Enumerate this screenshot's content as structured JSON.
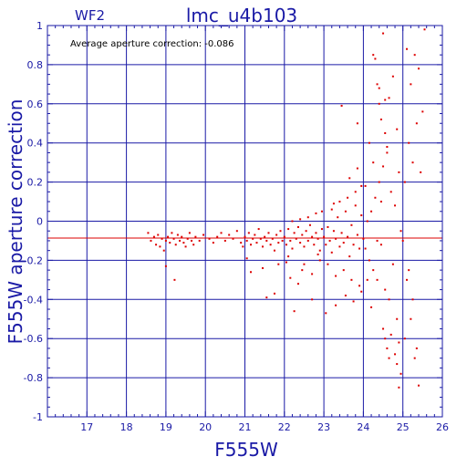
{
  "chart_data": {
    "type": "scatter",
    "title": "lmc_u4b103",
    "chip_label": "WF2",
    "annotation": "Average aperture correction: -0.086",
    "xlabel": "F555W",
    "ylabel": "F555W aperture correction",
    "xlim": [
      16,
      26
    ],
    "ylim": [
      -1,
      1
    ],
    "x_ticks": [
      17,
      18,
      19,
      20,
      21,
      22,
      23,
      24,
      25,
      26
    ],
    "y_ticks": [
      -1,
      -0.8,
      -0.6,
      -0.4,
      -0.2,
      0,
      0.2,
      0.4,
      0.6,
      0.8,
      1
    ],
    "grid": true,
    "average_line": -0.086,
    "colors": {
      "axes": "#1a1aa6",
      "points": "#dd0000",
      "average_line": "#dd0000",
      "annotation": "#000000"
    },
    "series": [
      {
        "points": [
          [
            18.55,
            -0.06
          ],
          [
            18.62,
            -0.1
          ],
          [
            18.7,
            -0.08
          ],
          [
            18.75,
            -0.12
          ],
          [
            18.8,
            -0.07
          ],
          [
            18.85,
            -0.13
          ],
          [
            18.9,
            -0.09
          ],
          [
            18.95,
            -0.15
          ],
          [
            19.0,
            -0.1
          ],
          [
            19.0,
            -0.23
          ],
          [
            19.05,
            -0.08
          ],
          [
            19.1,
            -0.11
          ],
          [
            19.15,
            -0.06
          ],
          [
            19.2,
            -0.09
          ],
          [
            19.22,
            -0.3
          ],
          [
            19.25,
            -0.12
          ],
          [
            19.3,
            -0.07
          ],
          [
            19.35,
            -0.1
          ],
          [
            19.4,
            -0.08
          ],
          [
            19.45,
            -0.11
          ],
          [
            19.5,
            -0.13
          ],
          [
            19.55,
            -0.09
          ],
          [
            19.6,
            -0.06
          ],
          [
            19.65,
            -0.1
          ],
          [
            19.7,
            -0.12
          ],
          [
            19.75,
            -0.08
          ],
          [
            19.85,
            -0.1
          ],
          [
            19.95,
            -0.07
          ],
          [
            20.1,
            -0.09
          ],
          [
            20.2,
            -0.11
          ],
          [
            20.3,
            -0.08
          ],
          [
            20.4,
            -0.06
          ],
          [
            20.5,
            -0.1
          ],
          [
            20.6,
            -0.07
          ],
          [
            20.7,
            -0.09
          ],
          [
            20.8,
            -0.05
          ],
          [
            20.9,
            -0.11
          ],
          [
            20.95,
            -0.13
          ],
          [
            21.0,
            -0.08
          ],
          [
            21.05,
            -0.1
          ],
          [
            21.1,
            -0.06
          ],
          [
            21.15,
            -0.12
          ],
          [
            21.2,
            -0.09
          ],
          [
            21.25,
            -0.07
          ],
          [
            21.3,
            -0.11
          ],
          [
            21.35,
            -0.04
          ],
          [
            21.4,
            -0.09
          ],
          [
            21.45,
            -0.13
          ],
          [
            21.5,
            -0.08
          ],
          [
            21.55,
            -0.1
          ],
          [
            21.6,
            -0.06
          ],
          [
            21.65,
            -0.12
          ],
          [
            21.7,
            -0.09
          ],
          [
            21.75,
            -0.15
          ],
          [
            21.8,
            -0.07
          ],
          [
            21.85,
            -0.11
          ],
          [
            21.9,
            -0.05
          ],
          [
            21.95,
            -0.1
          ],
          [
            21.05,
            -0.19
          ],
          [
            21.15,
            -0.26
          ],
          [
            21.55,
            -0.39
          ],
          [
            21.75,
            -0.37
          ],
          [
            21.45,
            -0.24
          ],
          [
            21.85,
            -0.22
          ],
          [
            22.0,
            -0.08
          ],
          [
            22.05,
            -0.12
          ],
          [
            22.1,
            -0.04
          ],
          [
            22.15,
            -0.1
          ],
          [
            22.2,
            -0.14
          ],
          [
            22.25,
            -0.06
          ],
          [
            22.3,
            -0.09
          ],
          [
            22.35,
            -0.03
          ],
          [
            22.4,
            -0.11
          ],
          [
            22.45,
            -0.07
          ],
          [
            22.5,
            -0.13
          ],
          [
            22.55,
            -0.05
          ],
          [
            22.6,
            -0.1
          ],
          [
            22.65,
            -0.02
          ],
          [
            22.7,
            -0.08
          ],
          [
            22.75,
            -0.12
          ],
          [
            22.8,
            -0.06
          ],
          [
            22.85,
            -0.09
          ],
          [
            22.9,
            -0.15
          ],
          [
            22.95,
            -0.04
          ],
          [
            22.1,
            -0.18
          ],
          [
            22.2,
            0.0
          ],
          [
            22.35,
            -0.32
          ],
          [
            22.5,
            -0.22
          ],
          [
            22.6,
            0.02
          ],
          [
            22.7,
            -0.27
          ],
          [
            22.8,
            0.04
          ],
          [
            22.9,
            -0.2
          ],
          [
            22.25,
            -0.46
          ],
          [
            22.7,
            -0.4
          ],
          [
            22.15,
            -0.29
          ],
          [
            22.45,
            -0.25
          ],
          [
            22.95,
            0.05
          ],
          [
            22.4,
            0.01
          ],
          [
            22.85,
            -0.17
          ],
          [
            22.05,
            -0.21
          ],
          [
            23.0,
            -0.08
          ],
          [
            23.05,
            -0.12
          ],
          [
            23.1,
            -0.03
          ],
          [
            23.15,
            -0.1
          ],
          [
            23.2,
            -0.16
          ],
          [
            23.25,
            -0.05
          ],
          [
            23.3,
            -0.09
          ],
          [
            23.35,
            0.02
          ],
          [
            23.4,
            -0.13
          ],
          [
            23.45,
            -0.06
          ],
          [
            23.5,
            -0.11
          ],
          [
            23.55,
            0.05
          ],
          [
            23.6,
            -0.08
          ],
          [
            23.65,
            -0.18
          ],
          [
            23.7,
            -0.02
          ],
          [
            23.75,
            -0.12
          ],
          [
            23.8,
            0.08
          ],
          [
            23.85,
            -0.07
          ],
          [
            23.9,
            -0.14
          ],
          [
            23.95,
            0.03
          ],
          [
            23.1,
            -0.22
          ],
          [
            23.2,
            0.06
          ],
          [
            23.3,
            -0.28
          ],
          [
            23.4,
            0.1
          ],
          [
            23.5,
            -0.25
          ],
          [
            23.6,
            0.12
          ],
          [
            23.7,
            -0.3
          ],
          [
            23.8,
            0.15
          ],
          [
            23.9,
            -0.33
          ],
          [
            23.95,
            0.18
          ],
          [
            23.05,
            -0.47
          ],
          [
            23.3,
            -0.43
          ],
          [
            23.45,
            0.59
          ],
          [
            23.55,
            -0.38
          ],
          [
            23.65,
            0.22
          ],
          [
            23.75,
            -0.41
          ],
          [
            23.85,
            0.27
          ],
          [
            23.95,
            -0.36
          ],
          [
            23.25,
            0.09
          ],
          [
            23.85,
            0.5
          ],
          [
            24.0,
            -0.09
          ],
          [
            24.05,
            -0.14
          ],
          [
            24.1,
            0.0
          ],
          [
            24.15,
            -0.2
          ],
          [
            24.2,
            0.05
          ],
          [
            24.25,
            -0.25
          ],
          [
            24.3,
            0.12
          ],
          [
            24.35,
            -0.3
          ],
          [
            24.4,
            0.2
          ],
          [
            24.45,
            -0.12
          ],
          [
            24.5,
            0.28
          ],
          [
            24.55,
            -0.35
          ],
          [
            24.6,
            0.35
          ],
          [
            24.65,
            -0.4
          ],
          [
            24.7,
            0.15
          ],
          [
            24.75,
            -0.22
          ],
          [
            24.8,
            0.08
          ],
          [
            24.85,
            -0.5
          ],
          [
            24.9,
            0.25
          ],
          [
            24.95,
            -0.05
          ],
          [
            24.15,
            0.4
          ],
          [
            24.2,
            -0.44
          ],
          [
            24.25,
            0.85
          ],
          [
            24.3,
            0.83
          ],
          [
            24.35,
            0.7
          ],
          [
            24.4,
            0.6
          ],
          [
            24.45,
            0.52
          ],
          [
            24.5,
            0.96
          ],
          [
            24.55,
            0.45
          ],
          [
            24.6,
            0.38
          ],
          [
            24.5,
            -0.55
          ],
          [
            24.55,
            -0.6
          ],
          [
            24.6,
            -0.65
          ],
          [
            24.65,
            -0.7
          ],
          [
            24.7,
            -0.58
          ],
          [
            24.75,
            0.74
          ],
          [
            24.8,
            -0.68
          ],
          [
            24.85,
            -0.73
          ],
          [
            24.9,
            -0.62
          ],
          [
            24.95,
            -0.78
          ],
          [
            24.05,
            0.18
          ],
          [
            24.1,
            -0.3
          ],
          [
            24.25,
            0.3
          ],
          [
            24.35,
            -0.1
          ],
          [
            24.45,
            0.1
          ],
          [
            24.65,
            0.63
          ],
          [
            24.85,
            0.47
          ],
          [
            24.9,
            -0.85
          ],
          [
            24.4,
            0.68
          ],
          [
            24.55,
            0.62
          ],
          [
            25.0,
            -0.1
          ],
          [
            25.05,
            0.2
          ],
          [
            25.1,
            -0.3
          ],
          [
            25.15,
            0.4
          ],
          [
            25.2,
            -0.5
          ],
          [
            25.25,
            0.3
          ],
          [
            25.3,
            -0.7
          ],
          [
            25.35,
            0.5
          ],
          [
            25.4,
            -0.84
          ],
          [
            25.45,
            0.25
          ],
          [
            25.1,
            0.88
          ],
          [
            25.2,
            0.7
          ],
          [
            25.3,
            0.85
          ],
          [
            25.4,
            0.78
          ],
          [
            25.5,
            0.56
          ],
          [
            25.55,
            0.98
          ],
          [
            25.05,
            -0.6
          ],
          [
            25.15,
            -0.25
          ],
          [
            25.25,
            -0.4
          ],
          [
            25.35,
            -0.65
          ]
        ]
      }
    ]
  }
}
